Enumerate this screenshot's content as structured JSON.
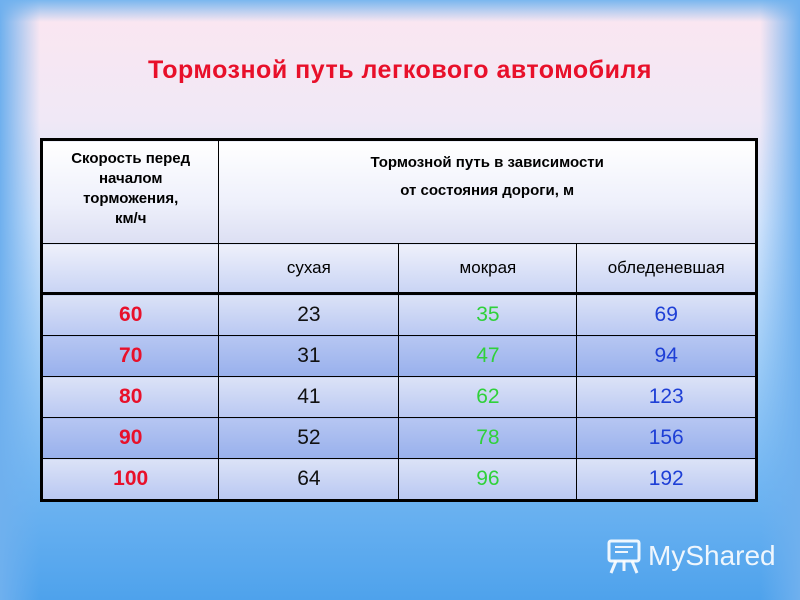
{
  "title": "Тормозной путь легкового автомобиля",
  "table": {
    "header": {
      "speed": [
        "Скорость перед",
        "началом",
        "торможения,",
        "км/ч"
      ],
      "distance": [
        "Тормозной путь в зависимости",
        "от состояния дороги, м"
      ]
    },
    "conditions": {
      "blank": "",
      "dry": "сухая",
      "wet": "мокрая",
      "icy": "обледеневшая"
    },
    "rows": [
      {
        "speed": "60",
        "dry": "23",
        "wet": "35",
        "icy": "69"
      },
      {
        "speed": "70",
        "dry": "31",
        "wet": "47",
        "icy": "94"
      },
      {
        "speed": "80",
        "dry": "41",
        "wet": "62",
        "icy": "123"
      },
      {
        "speed": "90",
        "dry": "52",
        "wet": "78",
        "icy": "156"
      },
      {
        "speed": "100",
        "dry": "64",
        "wet": "96",
        "icy": "192"
      }
    ]
  },
  "colors": {
    "title": "#e8102a",
    "speed": "#e8102a",
    "dry": "#111111",
    "wet": "#2fd13a",
    "icy": "#1e3fd6"
  },
  "watermark": {
    "icon": "presentation-board-icon",
    "text": "MyShared"
  }
}
